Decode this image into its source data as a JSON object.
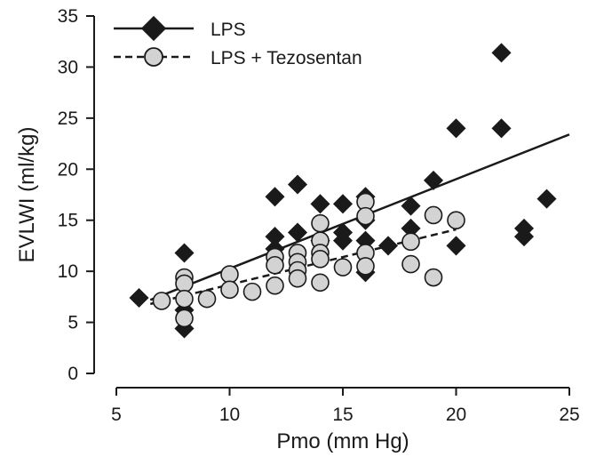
{
  "chart_data": {
    "type": "scatter",
    "xlabel": "Pmo (mm Hg)",
    "ylabel": "EVLWI (ml/kg)",
    "xlim": [
      5,
      25
    ],
    "ylim": [
      0,
      35
    ],
    "xticks": [
      "5",
      "10",
      "15",
      "20",
      "25"
    ],
    "yticks": [
      "0",
      "5",
      "10",
      "15",
      "20",
      "25",
      "30",
      "35"
    ],
    "grid": false,
    "legend_position": "top-left",
    "series": [
      {
        "name": "LPS",
        "marker": "diamond",
        "color": "#1a1a1a",
        "fit_line_style": "solid",
        "fit_line": [
          [
            6.5,
            7.2
          ],
          [
            25,
            23.4
          ]
        ],
        "points": [
          [
            6,
            7.4
          ],
          [
            8,
            11.8
          ],
          [
            8,
            6.2
          ],
          [
            8,
            4.4
          ],
          [
            12,
            17.3
          ],
          [
            12,
            13.4
          ],
          [
            12,
            12.2
          ],
          [
            13,
            18.5
          ],
          [
            13,
            13.8
          ],
          [
            14,
            16.6
          ],
          [
            14,
            13.0
          ],
          [
            15,
            16.6
          ],
          [
            15,
            13.8
          ],
          [
            15,
            13.0
          ],
          [
            16,
            17.3
          ],
          [
            16,
            15.0
          ],
          [
            16,
            13.0
          ],
          [
            16,
            9.9
          ],
          [
            17,
            12.5
          ],
          [
            18,
            16.4
          ],
          [
            18,
            14.2
          ],
          [
            19,
            18.9
          ],
          [
            20,
            24.0
          ],
          [
            20,
            12.5
          ],
          [
            22,
            31.4
          ],
          [
            22,
            24.0
          ],
          [
            23,
            14.2
          ],
          [
            23,
            13.4
          ],
          [
            24,
            17.1
          ]
        ]
      },
      {
        "name": "LPS + Tezosentan",
        "marker": "circle",
        "color": "#d3d3d3",
        "fit_line_style": "dashed",
        "fit_line": [
          [
            6.5,
            6.8
          ],
          [
            20,
            14.1
          ]
        ],
        "points": [
          [
            7,
            7.1
          ],
          [
            8,
            9.4
          ],
          [
            8,
            8.8
          ],
          [
            8,
            7.3
          ],
          [
            8,
            5.4
          ],
          [
            9,
            7.3
          ],
          [
            10,
            9.7
          ],
          [
            10,
            8.2
          ],
          [
            11,
            8.0
          ],
          [
            12,
            11.4
          ],
          [
            12,
            10.6
          ],
          [
            12,
            8.6
          ],
          [
            13,
            11.8
          ],
          [
            13,
            10.9
          ],
          [
            13,
            10.1
          ],
          [
            13,
            9.3
          ],
          [
            14,
            14.7
          ],
          [
            14,
            13.0
          ],
          [
            14,
            11.8
          ],
          [
            14,
            11.2
          ],
          [
            14,
            8.9
          ],
          [
            15,
            10.4
          ],
          [
            16,
            16.8
          ],
          [
            16,
            15.4
          ],
          [
            16,
            11.8
          ],
          [
            16,
            10.5
          ],
          [
            18,
            12.9
          ],
          [
            18,
            10.7
          ],
          [
            19,
            15.5
          ],
          [
            19,
            9.4
          ],
          [
            20,
            15.0
          ]
        ]
      }
    ]
  }
}
